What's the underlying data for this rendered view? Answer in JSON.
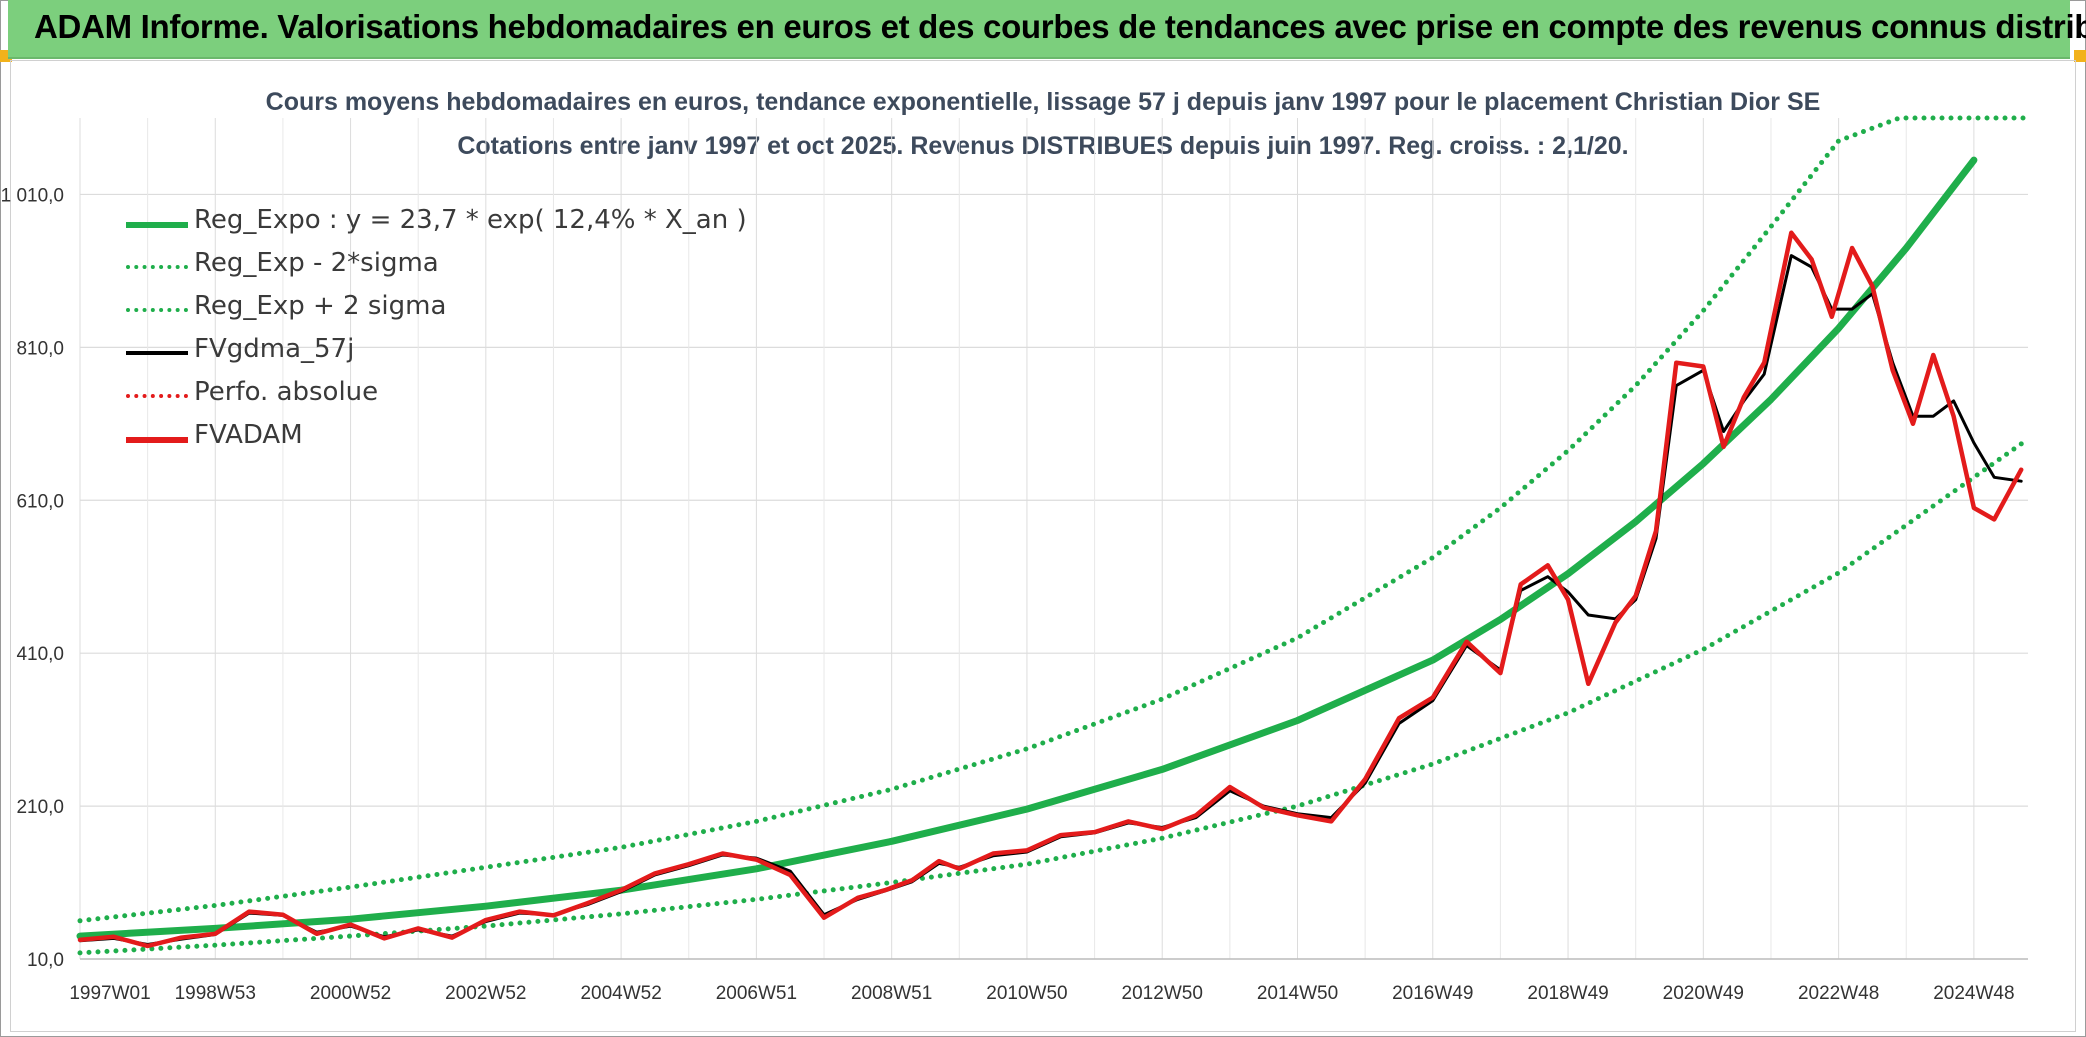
{
  "header": {
    "title": "ADAM Informe. Valorisations hebdomadaires en euros et des courbes de tendances avec prise en compte des revenus connus distribués"
  },
  "chart_data": {
    "type": "line",
    "title_lines": [
      "Cours moyens hebdomadaires en euros, tendance exponentielle, lissage 57 j depuis janv 1997 pour le placement Christian Dior SE",
      "Cotations entre janv 1997 et oct 2025. Revenus DISTRIBUES depuis juin 1997. Reg. croiss. : 2,1/20."
    ],
    "xlabel": "",
    "ylabel": "",
    "ylim": [
      10,
      1110
    ],
    "yticks": [
      10,
      210,
      410,
      610,
      810,
      1010
    ],
    "ytick_labels": [
      "10,0",
      "210,0",
      "410,0",
      "610,0",
      "810,0",
      "1 010,0"
    ],
    "xlim": [
      1997.0,
      2025.8
    ],
    "xticks": [
      1997.0,
      1999.0,
      2001.0,
      2003.0,
      2005.0,
      2007.0,
      2009.0,
      2011.0,
      2013.0,
      2015.0,
      2017.0,
      2019.0,
      2021.0,
      2023.0,
      2025.0
    ],
    "xtick_labels": [
      "1997W01",
      "1998W53",
      "2000W52",
      "2002W52",
      "2004W52",
      "2006W51",
      "2008W51",
      "2010W50",
      "2012W50",
      "2014W50",
      "2016W49",
      "2018W49",
      "2020W49",
      "2022W48",
      "2024W48"
    ],
    "grid": true,
    "legend_position": "top-left",
    "regression": {
      "a": 23.7,
      "rate": 0.124,
      "upper_clip": 1110
    },
    "legend": [
      {
        "label": "Reg_Expo : y = 23,7 * exp( 12,4% *  X_an )",
        "color": "#1fae4b",
        "style": "solid-thick"
      },
      {
        "label": "Reg_Exp - 2*sigma",
        "color": "#1fae4b",
        "style": "dotted"
      },
      {
        "label": "Reg_Exp + 2 sigma",
        "color": "#1fae4b",
        "style": "dotted"
      },
      {
        "label": "FVgdma_57j",
        "color": "#000000",
        "style": "solid"
      },
      {
        "label": "Perfo. absolue",
        "color": "#e31b1b",
        "style": "dotted"
      },
      {
        "label": "FVADAM",
        "color": "#e31b1b",
        "style": "solid-thick"
      }
    ],
    "series": [
      {
        "name": "Reg_Expo : y = 23,7 * exp( 12,4% *  X_an )",
        "x": [
          1997.0,
          1999.0,
          2001.0,
          2003.0,
          2005.0,
          2007.0,
          2009.0,
          2011.0,
          2013.0,
          2015.0,
          2017.0,
          2018.0,
          2019.0,
          2020.0,
          2021.0,
          2022.0,
          2023.0,
          2024.0,
          2025.0,
          2025.8
        ],
        "values": [
          40,
          50,
          62,
          79,
          100,
          128,
          164,
          206,
          258,
          322,
          401,
          454,
          514,
          582,
          658,
          742,
          835,
          940,
          1055,
          1150
        ]
      },
      {
        "name": "Reg_Exp - 2*sigma",
        "x": [
          1997.0,
          1999.0,
          2001.0,
          2003.0,
          2005.0,
          2007.0,
          2009.0,
          2011.0,
          2013.0,
          2015.0,
          2017.0,
          2019.0,
          2021.0,
          2023.0,
          2025.0,
          2025.8
        ],
        "values": [
          18,
          28,
          40,
          53,
          69,
          88,
          110,
          134,
          168,
          210,
          265,
          332,
          415,
          515,
          640,
          690
        ]
      },
      {
        "name": "Reg_Exp + 2 sigma",
        "x": [
          1997.0,
          1999.0,
          2001.0,
          2003.0,
          2005.0,
          2007.0,
          2009.0,
          2011.0,
          2013.0,
          2015.0,
          2017.0,
          2018.0,
          2019.0,
          2020.0,
          2021.0,
          2022.0,
          2023.0,
          2023.9,
          2025.8
        ],
        "values": [
          60,
          80,
          104,
          130,
          156,
          190,
          232,
          285,
          350,
          430,
          535,
          600,
          675,
          760,
          858,
          968,
          1080,
          1110,
          1110
        ]
      },
      {
        "name": "FVgdma_57j",
        "x": [
          1997.0,
          1997.5,
          1998.0,
          1998.5,
          1999.0,
          1999.5,
          2000.0,
          2000.5,
          2001.0,
          2001.5,
          2002.0,
          2002.5,
          2003.0,
          2003.5,
          2004.0,
          2004.5,
          2005.0,
          2005.5,
          2006.0,
          2006.5,
          2007.0,
          2007.5,
          2008.0,
          2008.5,
          2008.9,
          2009.3,
          2009.7,
          2010.0,
          2010.5,
          2011.0,
          2011.5,
          2012.0,
          2012.5,
          2013.0,
          2013.5,
          2014.0,
          2014.5,
          2015.0,
          2015.5,
          2016.0,
          2016.5,
          2017.0,
          2017.5,
          2018.0,
          2018.3,
          2018.7,
          2019.0,
          2019.3,
          2019.7,
          2020.0,
          2020.3,
          2020.6,
          2021.0,
          2021.3,
          2021.6,
          2021.9,
          2022.3,
          2022.6,
          2022.9,
          2023.2,
          2023.5,
          2023.8,
          2024.1,
          2024.4,
          2024.7,
          2025.0,
          2025.3,
          2025.7
        ],
        "values": [
          34,
          37,
          29,
          36,
          42,
          70,
          67,
          45,
          53,
          39,
          48,
          40,
          59,
          70,
          68,
          81,
          98,
          120,
          132,
          146,
          142,
          125,
          68,
          88,
          99,
          111,
          135,
          130,
          145,
          150,
          170,
          175,
          188,
          182,
          195,
          230,
          210,
          200,
          195,
          240,
          318,
          348,
          420,
          388,
          492,
          510,
          490,
          460,
          455,
          480,
          560,
          760,
          780,
          700,
          740,
          775,
          930,
          915,
          860,
          860,
          880,
          790,
          720,
          720,
          740,
          685,
          640,
          635
        ]
      },
      {
        "name": "FVADAM",
        "x": [
          1997.0,
          1997.5,
          1998.0,
          1998.5,
          1999.0,
          1999.5,
          2000.0,
          2000.5,
          2001.0,
          2001.5,
          2002.0,
          2002.5,
          2003.0,
          2003.5,
          2004.0,
          2004.5,
          2005.0,
          2005.5,
          2006.0,
          2006.5,
          2007.0,
          2007.5,
          2008.0,
          2008.5,
          2008.9,
          2009.3,
          2009.7,
          2010.0,
          2010.5,
          2011.0,
          2011.5,
          2012.0,
          2012.5,
          2013.0,
          2013.5,
          2014.0,
          2014.5,
          2015.0,
          2015.5,
          2016.0,
          2016.5,
          2017.0,
          2017.5,
          2018.0,
          2018.3,
          2018.7,
          2019.0,
          2019.3,
          2019.7,
          2020.0,
          2020.3,
          2020.6,
          2021.0,
          2021.3,
          2021.6,
          2021.9,
          2022.3,
          2022.6,
          2022.9,
          2023.2,
          2023.5,
          2023.8,
          2024.1,
          2024.4,
          2024.7,
          2025.0,
          2025.3,
          2025.7
        ],
        "values": [
          35,
          39,
          27,
          38,
          43,
          72,
          68,
          43,
          55,
          37,
          50,
          38,
          61,
          72,
          67,
          83,
          100,
          122,
          134,
          148,
          140,
          120,
          64,
          90,
          100,
          113,
          138,
          128,
          148,
          152,
          172,
          176,
          190,
          180,
          198,
          235,
          208,
          198,
          190,
          245,
          325,
          352,
          425,
          384,
          500,
          525,
          480,
          370,
          450,
          485,
          570,
          790,
          785,
          680,
          745,
          790,
          960,
          925,
          850,
          940,
          890,
          780,
          710,
          800,
          720,
          600,
          585,
          650
        ]
      }
    ]
  }
}
